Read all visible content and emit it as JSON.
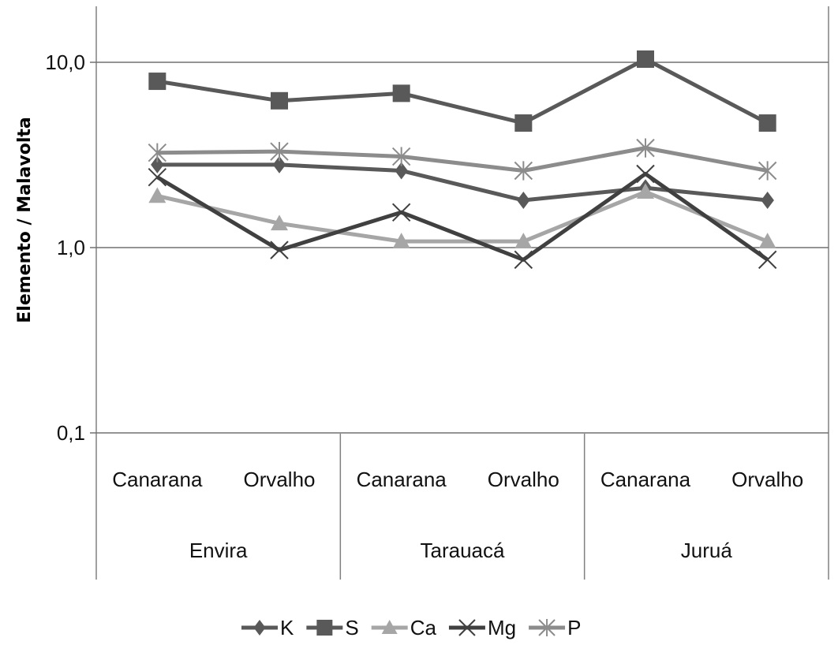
{
  "chart_data": {
    "type": "line",
    "ylabel": "Elemento / Malavolta",
    "y_scale": "log",
    "ylim": [
      0.1,
      20
    ],
    "y_ticks": [
      {
        "value": 10,
        "label": "10,0"
      },
      {
        "value": 1,
        "label": "1,0"
      },
      {
        "value": 0.1,
        "label": "0,1"
      }
    ],
    "grid": true,
    "legend_position": "bottom",
    "categories": [
      "Canarana",
      "Orvalho",
      "Canarana",
      "Orvalho",
      "Canarana",
      "Orvalho"
    ],
    "groups": [
      "Envira",
      "Tarauacá",
      "Juruá"
    ],
    "series": [
      {
        "name": "K",
        "marker": "diamond",
        "color": "#595959",
        "values": [
          2.8,
          2.8,
          2.6,
          1.8,
          2.1,
          1.8
        ]
      },
      {
        "name": "S",
        "marker": "square",
        "color": "#595959",
        "values": [
          7.9,
          6.2,
          6.8,
          4.7,
          10.4,
          4.7
        ]
      },
      {
        "name": "Ca",
        "marker": "triangle",
        "color": "#a6a6a6",
        "values": [
          1.9,
          1.35,
          1.08,
          1.08,
          2.0,
          1.08
        ]
      },
      {
        "name": "Mg",
        "marker": "x",
        "color": "#404040",
        "values": [
          2.4,
          0.97,
          1.55,
          0.86,
          2.5,
          0.86
        ]
      },
      {
        "name": "P",
        "marker": "asterisk",
        "color": "#8c8c8c",
        "values": [
          3.25,
          3.3,
          3.1,
          2.6,
          3.45,
          2.6
        ]
      }
    ]
  }
}
